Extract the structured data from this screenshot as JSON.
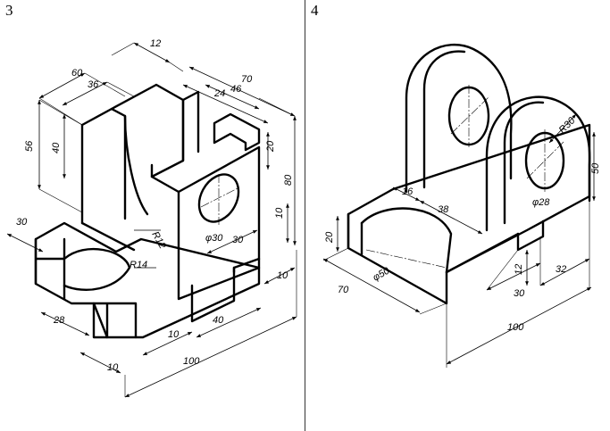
{
  "panels": [
    {
      "number": "3",
      "dimensions": [
        "12",
        "60",
        "36",
        "70",
        "46",
        "24",
        "56",
        "40",
        "20",
        "80",
        "10",
        "R12",
        "φ30",
        "30",
        "R14",
        "10",
        "30",
        "28",
        "10",
        "40",
        "100",
        "10"
      ]
    },
    {
      "number": "4",
      "dimensions": [
        "R30",
        "50",
        "16",
        "38",
        "φ28",
        "20",
        "φ50",
        "70",
        "12",
        "30",
        "32",
        "100"
      ]
    }
  ]
}
